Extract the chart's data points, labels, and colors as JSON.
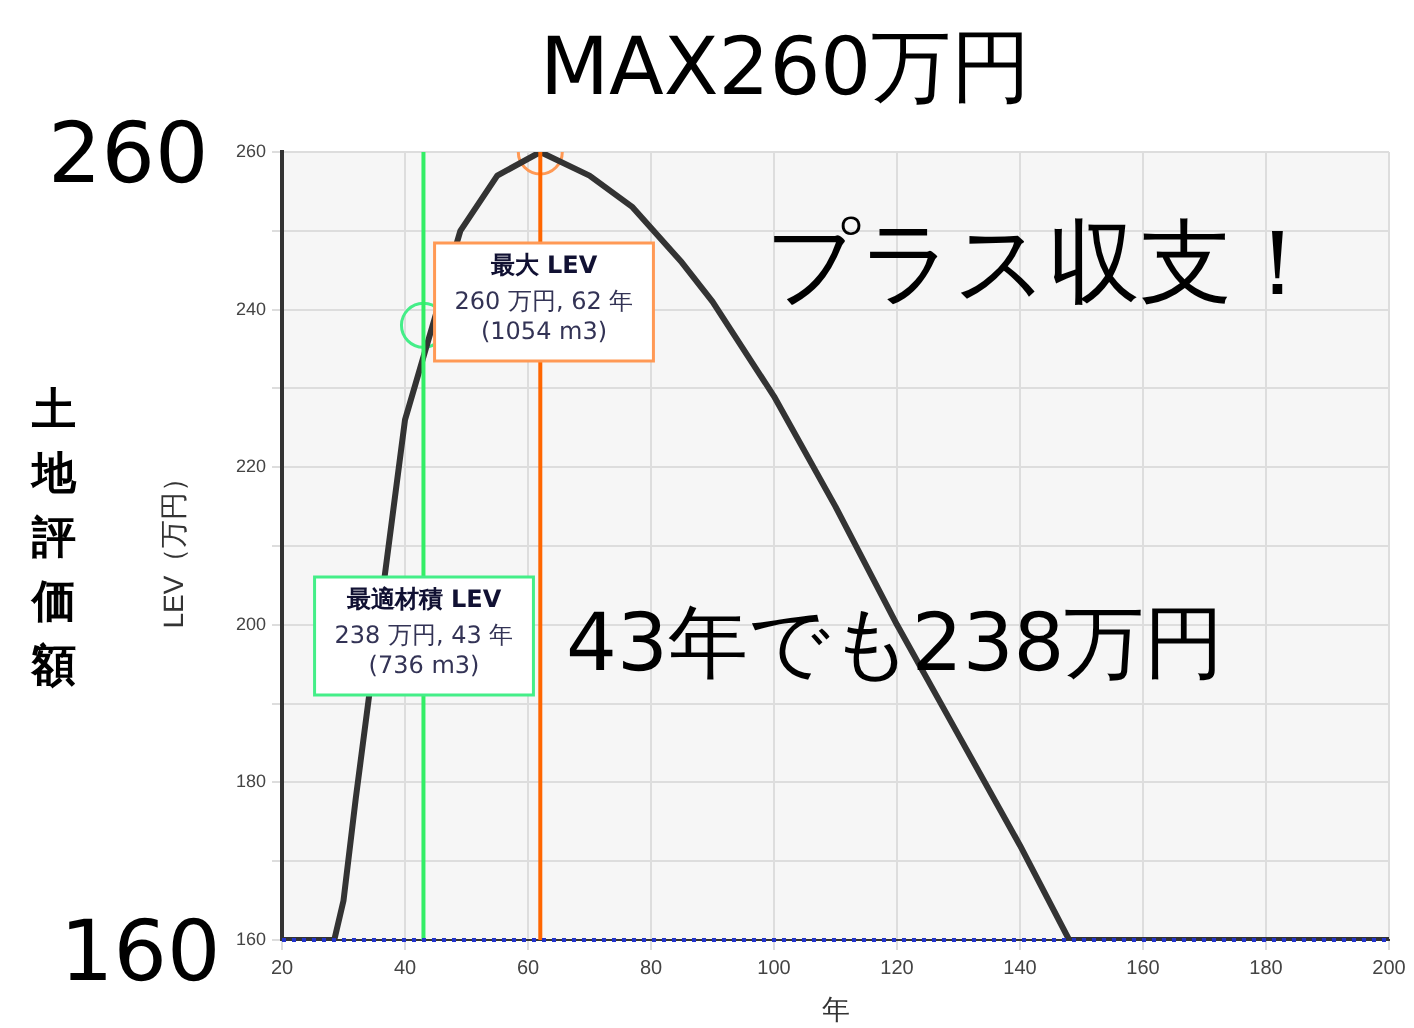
{
  "chart_data": {
    "type": "line",
    "xlabel": "年",
    "ylabel": "LEV（万円）",
    "xlim": [
      20,
      200
    ],
    "xticks": [
      20,
      40,
      60,
      80,
      100,
      120,
      140,
      160,
      180,
      200
    ],
    "ylim": [
      160,
      260
    ],
    "yticks": [
      160,
      {
        "value": 170,
        "label": null
      },
      180,
      {
        "value": 190,
        "label": null
      },
      200,
      {
        "value": 210,
        "label": null
      },
      220,
      {
        "value": 230,
        "label": null
      },
      240,
      {
        "value": 250,
        "label": null
      },
      260
    ],
    "grid": true,
    "legend": false,
    "marker": "none",
    "line_style": "solid",
    "series": [
      {
        "color": "#333333",
        "x": [
          20,
          28.5,
          30,
          32,
          37.5,
          40,
          49,
          55,
          62,
          70,
          77,
          85,
          90,
          100,
          110,
          120,
          130,
          140,
          148,
          200
        ],
        "values": [
          160,
          160,
          165,
          178,
          211,
          226,
          250,
          257,
          260,
          257,
          253,
          246,
          241,
          229,
          215,
          200,
          186,
          172,
          160,
          160
        ]
      },
      {
        "type": "scatter",
        "marker": "circle",
        "colors": [
          "#44ee88",
          "#ff9955"
        ],
        "x": [
          43,
          62
        ],
        "values": [
          238,
          260
        ]
      }
    ],
    "ref_lines": [
      {
        "axis": "x",
        "value": 43,
        "color": "#33ee66",
        "line_style": "solid"
      },
      {
        "axis": "x",
        "value": 62,
        "color": "#ff6600",
        "line_style": "solid"
      },
      {
        "axis": "y",
        "value": 160,
        "color": "#2233cc",
        "line_style": "dotted"
      }
    ],
    "annotations": [
      "最大 LEV\n260 万円, 62 年\n(1054 m3)",
      "最適材積 LEV\n238 万円, 43 年\n(736 m3)",
      "MAX260万円",
      "プラス収支！",
      "43年でも238万円",
      "260",
      "160",
      "土地評価額"
    ]
  }
}
